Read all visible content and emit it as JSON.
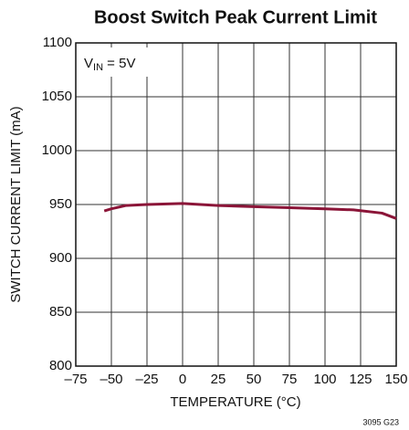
{
  "chart_data": {
    "type": "line",
    "title": "Boost Switch Peak Current Limit",
    "xlabel": "TEMPERATURE (°C)",
    "ylabel": "SWITCH CURRENT LIMIT (mA)",
    "annotation": {
      "symbol": "V",
      "subscript": "IN",
      "text": " = 5V"
    },
    "footnote": "3095 G23",
    "x": [
      -55,
      -50,
      -40,
      -25,
      0,
      25,
      50,
      75,
      100,
      120,
      140,
      150
    ],
    "values": [
      944,
      946,
      949,
      950,
      951,
      949,
      948,
      947,
      946,
      945,
      942,
      937
    ],
    "color": "#8b1538",
    "xlim": [
      -75,
      150
    ],
    "xticks": [
      {
        "value": -75,
        "label": "–75"
      },
      {
        "value": -50,
        "label": "–50"
      },
      {
        "value": -25,
        "label": "–25"
      },
      0,
      25,
      50,
      75,
      100,
      125,
      150
    ],
    "ylim": [
      800,
      1100
    ],
    "yticks": [
      800,
      850,
      900,
      950,
      1000,
      1050,
      1100
    ],
    "grid": true
  }
}
